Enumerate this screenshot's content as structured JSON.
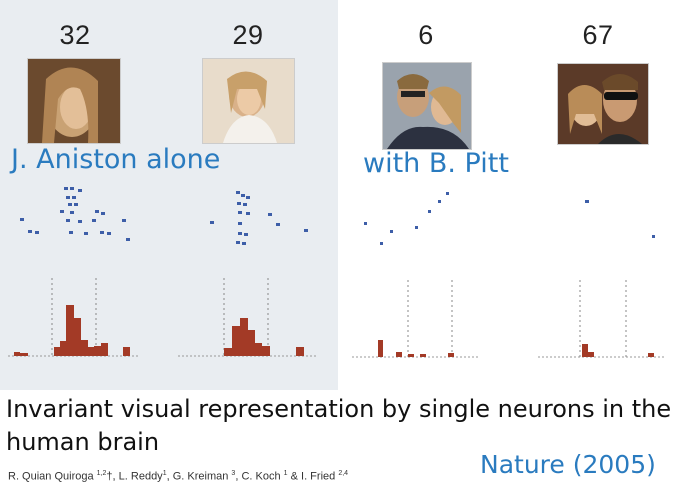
{
  "figure": {
    "counts": [
      "32",
      "29",
      "6",
      "67"
    ],
    "captions": {
      "alone": "J. Aniston alone",
      "with": "with B. Pitt"
    }
  },
  "paper": {
    "title": "Invariant visual representation by single neurons in the human brain",
    "authors": [
      {
        "name": "R. Quian Quiroga",
        "sup": "1,2",
        "mark": "†"
      },
      {
        "name": "L. Reddy",
        "sup": "1"
      },
      {
        "name": "G. Kreiman",
        "sup": "3"
      },
      {
        "name": "C. Koch",
        "sup": "1"
      },
      {
        "name": "I. Fried",
        "sup": "2,4"
      }
    ],
    "journal": "Nature (2005)"
  },
  "colors": {
    "accent": "#2a7bbf",
    "raster": "#3d5ea8",
    "histogram": "#a33a26",
    "panel_bg": "#e9edf1"
  }
}
